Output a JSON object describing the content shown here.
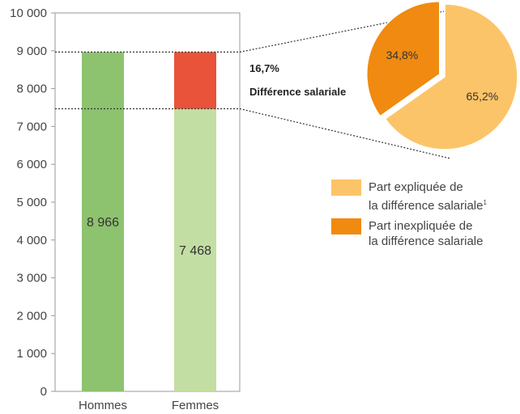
{
  "chart_data": [
    {
      "type": "bar",
      "categories": [
        "Hommes",
        "Femmes"
      ],
      "series": [
        {
          "values": [
            8966,
            7468
          ]
        },
        {
          "values": [
            0,
            1498
          ]
        }
      ],
      "value_labels": [
        "8 966",
        "7 468"
      ],
      "colors": {
        "hommes": "#8dc26f",
        "femmes": "#c3dea3",
        "gap": "#e8533a",
        "axis": "#9a9a9a"
      },
      "yticks": [
        "0",
        "1 000",
        "2 000",
        "3 000",
        "4 000",
        "5 000",
        "6 000",
        "7 000",
        "8 000",
        "9 000",
        "10 000"
      ],
      "ylim": [
        0,
        10000
      ],
      "annotation": {
        "percent": "16,7%",
        "label": "Différence salariale"
      }
    },
    {
      "type": "pie",
      "labels": [
        "Part expliquée de la différence salariale",
        "Part inexpliquée de la différence salariale"
      ],
      "values": [
        65.2,
        34.8
      ],
      "value_labels": [
        "65,2%",
        "34,8%"
      ],
      "colors": [
        "#fcc468",
        "#f08a10"
      ]
    }
  ],
  "legend": [
    {
      "line1": "Part expliquée de",
      "line2": "la différence salariale",
      "sup": "1",
      "color": "#fcc468"
    },
    {
      "line1": "Part inexpliquée de",
      "line2": "la différence salariale",
      "sup": "",
      "color": "#f08a10"
    }
  ]
}
